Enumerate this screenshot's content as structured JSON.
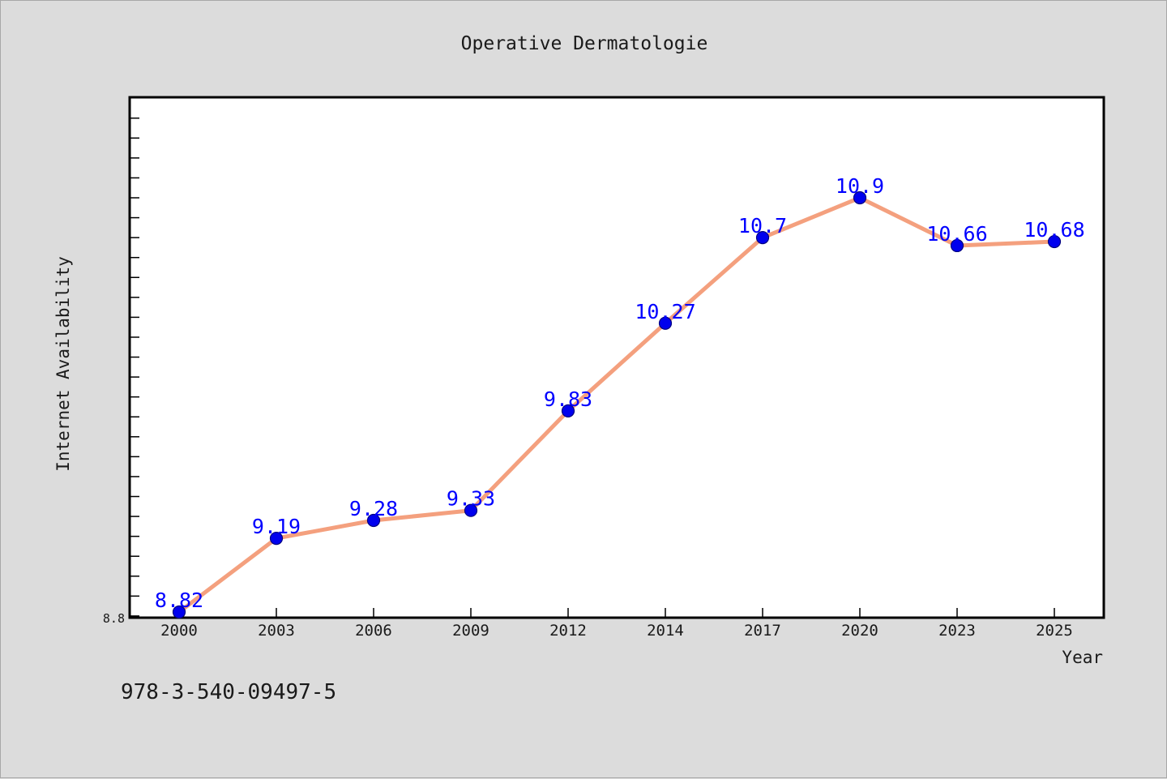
{
  "chart_data": {
    "type": "line",
    "title": "Operative Dermatologie",
    "xlabel": "Year",
    "ylabel": "Internet Availability",
    "categories": [
      "2000",
      "2003",
      "2006",
      "2009",
      "2012",
      "2014",
      "2017",
      "2020",
      "2023",
      "2025"
    ],
    "series": [
      {
        "values": [
          8.82,
          9.19,
          9.28,
          9.33,
          9.83,
          10.27,
          10.7,
          10.9,
          10.66,
          10.68
        ],
        "labels": [
          "8.82",
          "9.19",
          "9.28",
          "9.33",
          "9.83",
          "10.27",
          "10.7",
          "10.9",
          "10.66",
          "10.68"
        ],
        "line_color": "#f4a07e",
        "marker_color": "#0000ee",
        "label_color": "#0000ff"
      }
    ],
    "ylim": [
      8.8,
      11.4
    ],
    "ytick_labels": [
      "8.8"
    ],
    "grid": false,
    "legend": "none",
    "footer_text": "978-3-540-09497-5",
    "background_color": "#dcdcdc",
    "plot_background": "#ffffff"
  }
}
